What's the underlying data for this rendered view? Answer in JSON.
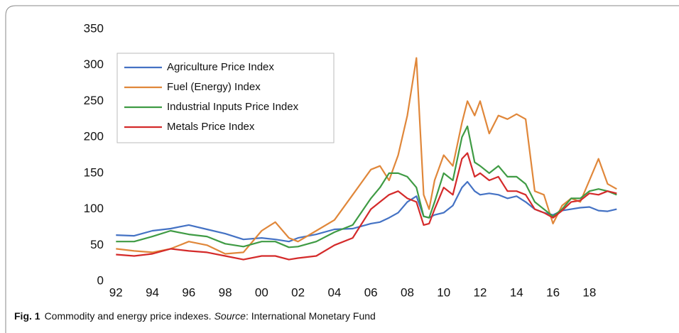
{
  "chart_data": {
    "type": "line",
    "caption": {
      "label": "Fig. 1",
      "text": "Commodity and energy price indexes.",
      "source_label": "Source",
      "source": ": International Monetary Fund"
    },
    "x": [
      1992,
      1993,
      1994,
      1995,
      1996,
      1997,
      1998,
      1999,
      2000,
      2000.75,
      2001.5,
      2002,
      2003,
      2004,
      2005,
      2006,
      2006.5,
      2007,
      2007.5,
      2008,
      2008.5,
      2008.9,
      2009.2,
      2009.5,
      2010,
      2010.5,
      2011,
      2011.3,
      2011.7,
      2012,
      2012.5,
      2013,
      2013.5,
      2014,
      2014.5,
      2015,
      2015.5,
      2016,
      2016.5,
      2017,
      2017.5,
      2018,
      2018.5,
      2019,
      2019.5
    ],
    "series": [
      {
        "name": "Agriculture Price Index",
        "color": "#4472c4",
        "values": [
          64,
          63,
          70,
          73,
          78,
          72,
          66,
          58,
          60,
          58,
          55,
          60,
          65,
          72,
          73,
          80,
          82,
          88,
          95,
          110,
          118,
          90,
          88,
          92,
          95,
          105,
          130,
          138,
          125,
          120,
          122,
          120,
          115,
          118,
          110,
          100,
          95,
          92,
          98,
          100,
          102,
          103,
          98,
          97,
          100
        ]
      },
      {
        "name": "Fuel (Energy) Index",
        "color": "#e0873a",
        "values": [
          45,
          42,
          40,
          45,
          55,
          50,
          38,
          40,
          70,
          82,
          60,
          55,
          70,
          85,
          120,
          155,
          160,
          140,
          175,
          230,
          310,
          120,
          100,
          140,
          175,
          160,
          220,
          250,
          230,
          250,
          205,
          230,
          225,
          232,
          225,
          125,
          120,
          80,
          105,
          115,
          110,
          140,
          170,
          135,
          128
        ]
      },
      {
        "name": "Industrial Inputs Price Index",
        "color": "#3f9b44",
        "values": [
          55,
          55,
          62,
          70,
          65,
          62,
          52,
          48,
          55,
          55,
          47,
          48,
          55,
          68,
          78,
          115,
          130,
          150,
          150,
          145,
          130,
          90,
          88,
          110,
          150,
          140,
          200,
          215,
          165,
          160,
          150,
          160,
          145,
          145,
          135,
          110,
          100,
          90,
          100,
          115,
          115,
          125,
          128,
          125,
          120
        ]
      },
      {
        "name": "Metals Price Index",
        "color": "#d42a2a",
        "values": [
          37,
          35,
          38,
          45,
          42,
          40,
          35,
          30,
          35,
          35,
          30,
          32,
          35,
          50,
          60,
          100,
          110,
          120,
          125,
          115,
          110,
          78,
          80,
          100,
          130,
          120,
          170,
          178,
          145,
          150,
          140,
          145,
          125,
          125,
          120,
          100,
          95,
          88,
          98,
          110,
          112,
          122,
          120,
          125,
          122
        ]
      }
    ],
    "xlim": [
      1991.6,
      2019.8
    ],
    "xticks": [
      {
        "value": 1992,
        "label": "92"
      },
      {
        "value": 1994,
        "label": "94"
      },
      {
        "value": 1996,
        "label": "96"
      },
      {
        "value": 1998,
        "label": "98"
      },
      {
        "value": 2000,
        "label": "00"
      },
      {
        "value": 2002,
        "label": "02"
      },
      {
        "value": 2004,
        "label": "04"
      },
      {
        "value": 2006,
        "label": "06"
      },
      {
        "value": 2008,
        "label": "08"
      },
      {
        "value": 2010,
        "label": "10"
      },
      {
        "value": 2012,
        "label": "12"
      },
      {
        "value": 2014,
        "label": "14"
      },
      {
        "value": 2016,
        "label": "16"
      },
      {
        "value": 2018,
        "label": "18"
      }
    ],
    "ylim": [
      0,
      350
    ],
    "yticks": [
      0,
      50,
      100,
      150,
      200,
      250,
      300,
      350
    ],
    "grid": false,
    "legend": "upper-left"
  }
}
